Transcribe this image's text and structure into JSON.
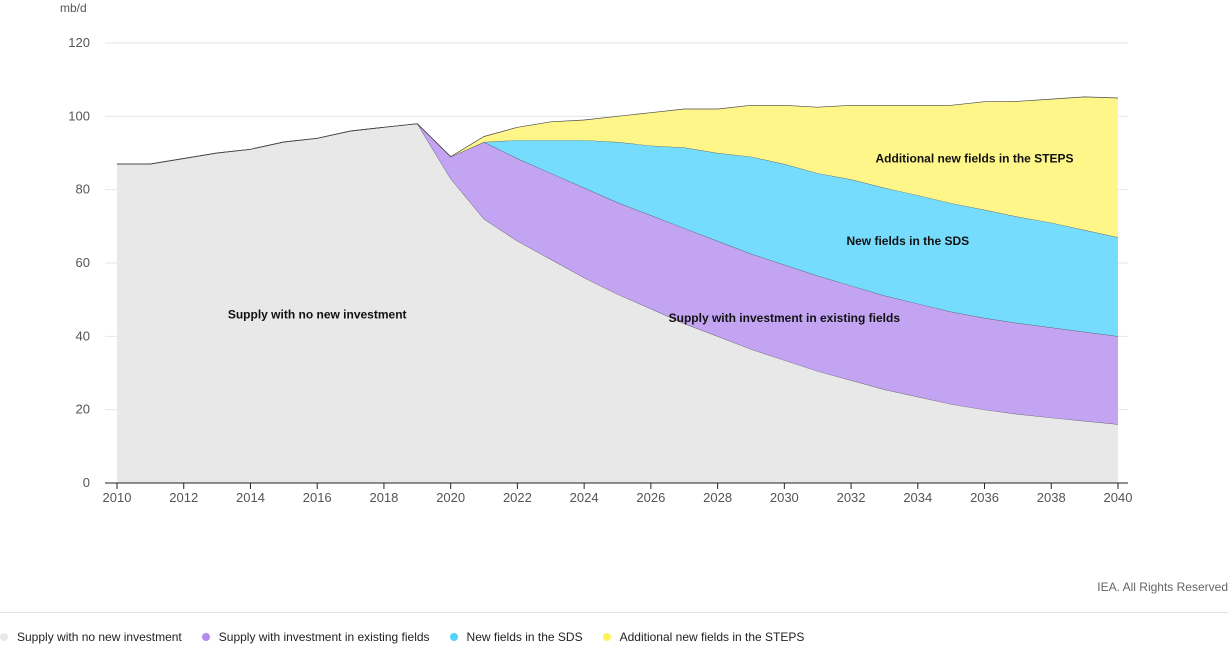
{
  "chart_data": {
    "type": "area",
    "stacked": true,
    "unit_label": "mb/d",
    "x": [
      2010,
      2011,
      2012,
      2013,
      2014,
      2015,
      2016,
      2017,
      2018,
      2019,
      2020,
      2021,
      2022,
      2023,
      2024,
      2025,
      2026,
      2027,
      2028,
      2029,
      2030,
      2031,
      2032,
      2033,
      2034,
      2035,
      2036,
      2037,
      2038,
      2039,
      2040
    ],
    "xticks": [
      2010,
      2012,
      2014,
      2016,
      2018,
      2020,
      2022,
      2024,
      2026,
      2028,
      2030,
      2032,
      2034,
      2036,
      2038,
      2040
    ],
    "yticks": [
      0,
      20,
      40,
      60,
      80,
      100,
      120
    ],
    "xlim": [
      2010,
      2040
    ],
    "ylim": [
      0,
      120
    ],
    "grid": true,
    "series": [
      {
        "name": "Supply with no new investment",
        "color": "#e8e8e8",
        "values": [
          87,
          87,
          88.5,
          90,
          91,
          93,
          94,
          96,
          97,
          98,
          83,
          72,
          66,
          61,
          56,
          51.5,
          47.5,
          43.5,
          40,
          36.5,
          33.5,
          30.5,
          28,
          25.5,
          23.5,
          21.5,
          20,
          18.8,
          17.8,
          16.9,
          16
        ]
      },
      {
        "name": "Supply with investment in existing fields",
        "color": "#c3a4f3",
        "values": [
          0,
          0,
          0,
          0,
          0,
          0,
          0,
          0,
          0,
          0,
          6,
          21,
          22.5,
          23.5,
          24.5,
          25,
          25.5,
          26,
          26,
          26,
          26,
          26,
          25.8,
          25.6,
          25.4,
          25.2,
          25,
          24.8,
          24.6,
          24.3,
          24
        ]
      },
      {
        "name": "New fields in the SDS",
        "color": "#76dcfd",
        "values": [
          0,
          0,
          0,
          0,
          0,
          0,
          0,
          0,
          0,
          0,
          0,
          0,
          5,
          9,
          13,
          16.5,
          19,
          22,
          24,
          26.5,
          27.5,
          28,
          29,
          29.4,
          29.6,
          29.6,
          29.5,
          29,
          28.6,
          27.8,
          27
        ]
      },
      {
        "name": "Additional new fields in the STEPS",
        "color": "#fff68a",
        "values": [
          0,
          0,
          0,
          0,
          0,
          0,
          0,
          0,
          0,
          0,
          0,
          1.5,
          3.5,
          5,
          5.5,
          7,
          9,
          10.5,
          12,
          14,
          16,
          18,
          20.2,
          22.5,
          24.5,
          26.7,
          29.5,
          31.5,
          33.7,
          36.3,
          38
        ]
      }
    ],
    "annotations": [
      {
        "text": "Supply with no new investment",
        "series": 0,
        "x": 2016,
        "y": 46
      },
      {
        "text": "Supply with investment in existing fields",
        "series": 1,
        "x": 2030,
        "y": 45
      },
      {
        "text": "New fields in the SDS",
        "series": 2,
        "x": 2033.7,
        "y": 66
      },
      {
        "text": "Additional new fields in the STEPS",
        "series": 3,
        "x": 2035.7,
        "y": 88.5
      }
    ]
  },
  "credit": "IEA. All Rights Reserved",
  "legend": [
    {
      "label": "Supply with no new investment",
      "color": "#e8e8e8"
    },
    {
      "label": "Supply with investment in existing fields",
      "color": "#b28af0"
    },
    {
      "label": "New fields in the SDS",
      "color": "#52d3fb"
    },
    {
      "label": "Additional new fields in the STEPS",
      "color": "#fff15c"
    }
  ]
}
